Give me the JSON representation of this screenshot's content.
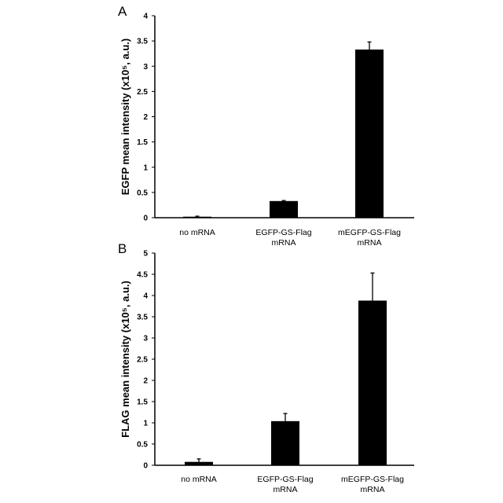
{
  "chart_data": [
    {
      "type": "bar",
      "panel_label": "A",
      "title": "",
      "xlabel": "",
      "ylabel": "EGFP mean intensity (x10⁵, a.u.)",
      "categories": [
        [
          "no mRNA"
        ],
        [
          "EGFP-GS-Flag",
          "mRNA"
        ],
        [
          "mEGFP-GS-Flag",
          "mRNA"
        ]
      ],
      "values": [
        0.02,
        0.33,
        3.33
      ],
      "error_upper": [
        0.03,
        0.34,
        3.48
      ],
      "ylim": [
        0,
        4
      ],
      "yticks": [
        "0",
        "0.5",
        "1",
        "1.5",
        "2",
        "2.5",
        "3",
        "3.5",
        "4"
      ],
      "ytick_values": [
        0,
        0.5,
        1,
        1.5,
        2,
        2.5,
        3,
        3.5,
        4
      ],
      "grid": false,
      "bar_color": "#000000"
    },
    {
      "type": "bar",
      "panel_label": "B",
      "title": "",
      "xlabel": "",
      "ylabel": "FLAG mean intensity (x10⁵, a.u.)",
      "categories": [
        [
          "no mRNA"
        ],
        [
          "EGFP-GS-Flag",
          "mRNA"
        ],
        [
          "mEGFP-GS-Flag",
          "mRNA"
        ]
      ],
      "values": [
        0.08,
        1.04,
        3.88
      ],
      "error_upper": [
        0.15,
        1.22,
        4.53
      ],
      "ylim": [
        0,
        5
      ],
      "yticks": [
        "0",
        "0.5",
        "1",
        "1.5",
        "2",
        "2.5",
        "3",
        "3.5",
        "4",
        "4.5",
        "5"
      ],
      "ytick_values": [
        0,
        0.5,
        1,
        1.5,
        2,
        2.5,
        3,
        3.5,
        4,
        4.5,
        5
      ],
      "grid": false,
      "bar_color": "#000000"
    }
  ]
}
